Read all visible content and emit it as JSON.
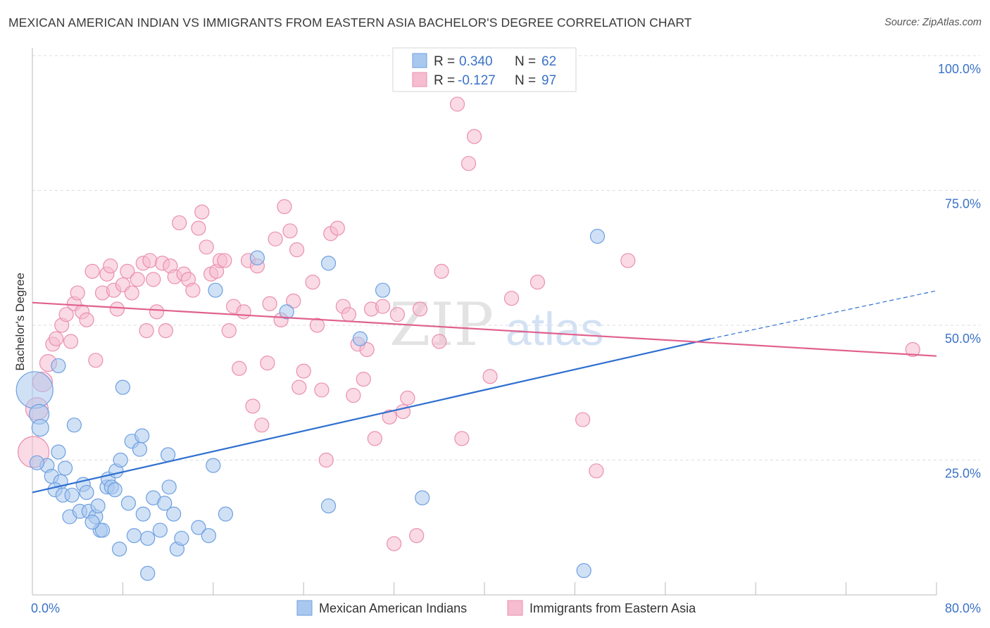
{
  "title": "MEXICAN AMERICAN INDIAN VS IMMIGRANTS FROM EASTERN ASIA BACHELOR'S DEGREE CORRELATION CHART",
  "source": "Source: ZipAtlas.com",
  "watermark": {
    "zip": "ZIP",
    "atlas": "atlas"
  },
  "colors": {
    "blue_fill": "#a9c8ef",
    "blue_stroke": "#6d9fe0",
    "blue_line": "#2e6fd0",
    "pink_fill": "#f6bcd0",
    "pink_stroke": "#ea8faf",
    "pink_line": "#e0608e",
    "tick_text": "#3b72c7",
    "grid": "#dddddd"
  },
  "legend": {
    "rows": [
      {
        "r_label": "R = ",
        "r_value": "0.340",
        "n_label": "N = ",
        "n_value": "62"
      },
      {
        "r_label": "R = ",
        "r_value": "-0.127",
        "n_label": "N = ",
        "n_value": "97"
      }
    ]
  },
  "chart_data": {
    "type": "scatter",
    "title": "MEXICAN AMERICAN INDIAN VS IMMIGRANTS FROM EASTERN ASIA BACHELOR'S DEGREE CORRELATION CHART",
    "xlabel": "",
    "ylabel": "Bachelor's Degree",
    "xlim": [
      0,
      80
    ],
    "ylim": [
      0,
      100
    ],
    "x_ticks": [
      "0.0%",
      "80.0%"
    ],
    "y_ticks": [
      {
        "value": 100,
        "label": "100.0%"
      },
      {
        "value": 75,
        "label": "75.0%"
      },
      {
        "value": 50,
        "label": "50.0%"
      },
      {
        "value": 25,
        "label": "25.0%"
      }
    ],
    "grid": true,
    "legend_position": "bottom",
    "series": [
      {
        "name": "Mexican American Indians",
        "color": "#a9c8ef",
        "trend": {
          "x0": 0,
          "y0": 19,
          "x1": 60,
          "y1": 47.5,
          "dashed_to_x": 80,
          "dashed_to_y": 56.4
        },
        "points": [
          [
            0.2,
            38,
            26
          ],
          [
            0.6,
            33.5,
            14
          ],
          [
            0.7,
            31,
            12
          ],
          [
            2.3,
            42.5,
            10
          ],
          [
            3.7,
            31.5,
            10
          ],
          [
            8,
            38.5,
            10
          ],
          [
            1.3,
            24,
            10
          ],
          [
            2.3,
            26.5,
            10
          ],
          [
            2.9,
            23.5,
            10
          ],
          [
            1.7,
            22,
            10
          ],
          [
            2.5,
            21,
            10
          ],
          [
            2.0,
            19.5,
            10
          ],
          [
            2.7,
            18.5,
            10
          ],
          [
            3.5,
            18.5,
            10
          ],
          [
            4.5,
            20.5,
            10
          ],
          [
            4.8,
            19,
            10
          ],
          [
            3.3,
            14.5,
            10
          ],
          [
            4.2,
            15.5,
            10
          ],
          [
            5.0,
            15.5,
            10
          ],
          [
            5.6,
            14.5,
            10
          ],
          [
            5.8,
            16.5,
            10
          ],
          [
            6.0,
            12,
            10
          ],
          [
            6.2,
            12,
            10
          ],
          [
            6.6,
            20,
            10
          ],
          [
            6.7,
            21.5,
            10
          ],
          [
            7.0,
            20,
            10
          ],
          [
            7.3,
            19.5,
            10
          ],
          [
            7.4,
            23,
            10
          ],
          [
            7.8,
            25,
            10
          ],
          [
            8.5,
            17,
            10
          ],
          [
            7.7,
            8.5,
            10
          ],
          [
            8.8,
            28.5,
            10
          ],
          [
            9.0,
            11,
            10
          ],
          [
            9.5,
            27,
            10
          ],
          [
            9.8,
            15,
            10
          ],
          [
            9.7,
            29.5,
            10
          ],
          [
            10.2,
            10.5,
            10
          ],
          [
            10.2,
            4,
            10
          ],
          [
            10.7,
            18,
            10
          ],
          [
            11.3,
            12,
            10
          ],
          [
            11.7,
            17,
            10
          ],
          [
            12.0,
            26,
            10
          ],
          [
            12.1,
            20,
            10
          ],
          [
            12.5,
            15,
            10
          ],
          [
            12.8,
            8.5,
            10
          ],
          [
            13.2,
            10.5,
            10
          ],
          [
            14.7,
            12.5,
            10
          ],
          [
            15.6,
            11,
            10
          ],
          [
            16.0,
            24,
            10
          ],
          [
            16.2,
            56.5,
            10
          ],
          [
            17.1,
            15,
            10
          ],
          [
            19.9,
            62.5,
            10
          ],
          [
            22.5,
            52.5,
            10
          ],
          [
            26.2,
            16.5,
            10
          ],
          [
            26.2,
            61.5,
            10
          ],
          [
            29.0,
            47.5,
            10
          ],
          [
            31.0,
            56.5,
            10
          ],
          [
            34.5,
            18,
            10
          ],
          [
            50.0,
            66.5,
            10
          ],
          [
            48.8,
            4.5,
            10
          ],
          [
            0.4,
            24.5,
            10
          ],
          [
            5.3,
            13.5,
            10
          ]
        ]
      },
      {
        "name": "Immigrants from Eastern Asia",
        "color": "#f6bcd0",
        "trend": {
          "x0": 0,
          "y0": 54.2,
          "x1": 80,
          "y1": 44.3
        },
        "points": [
          [
            0.1,
            26.5,
            22
          ],
          [
            0.4,
            34.5,
            16
          ],
          [
            0.9,
            39.5,
            14
          ],
          [
            1.4,
            43,
            12
          ],
          [
            1.8,
            46.5,
            10
          ],
          [
            2.1,
            47.5,
            10
          ],
          [
            2.6,
            50,
            10
          ],
          [
            3.0,
            52,
            10
          ],
          [
            3.4,
            47,
            10
          ],
          [
            3.7,
            54,
            10
          ],
          [
            4.0,
            56,
            10
          ],
          [
            4.4,
            52.5,
            10
          ],
          [
            4.8,
            51,
            10
          ],
          [
            5.3,
            60,
            10
          ],
          [
            5.6,
            43.5,
            10
          ],
          [
            6.2,
            56,
            10
          ],
          [
            6.6,
            59.5,
            10
          ],
          [
            6.9,
            61,
            10
          ],
          [
            7.2,
            56.5,
            10
          ],
          [
            7.5,
            53,
            10
          ],
          [
            8.0,
            57.5,
            10
          ],
          [
            8.4,
            60,
            10
          ],
          [
            8.8,
            56,
            10
          ],
          [
            9.3,
            58.5,
            10
          ],
          [
            9.8,
            61.5,
            10
          ],
          [
            10.1,
            49,
            10
          ],
          [
            10.4,
            62,
            10
          ],
          [
            10.7,
            58.5,
            10
          ],
          [
            11.0,
            52.5,
            10
          ],
          [
            11.5,
            61.5,
            10
          ],
          [
            11.8,
            49,
            10
          ],
          [
            12.2,
            61,
            10
          ],
          [
            12.6,
            59,
            10
          ],
          [
            13.0,
            69,
            10
          ],
          [
            13.4,
            59.5,
            10
          ],
          [
            13.8,
            58.5,
            10
          ],
          [
            14.2,
            56.5,
            10
          ],
          [
            14.7,
            68,
            10
          ],
          [
            15.0,
            71,
            10
          ],
          [
            15.4,
            64.5,
            10
          ],
          [
            15.8,
            59.5,
            10
          ],
          [
            16.3,
            60,
            10
          ],
          [
            16.6,
            62,
            10
          ],
          [
            17.0,
            62,
            10
          ],
          [
            17.4,
            49,
            10
          ],
          [
            17.8,
            53.5,
            10
          ],
          [
            18.3,
            42,
            10
          ],
          [
            18.7,
            52.5,
            10
          ],
          [
            19.1,
            62,
            10
          ],
          [
            19.5,
            35,
            10
          ],
          [
            19.9,
            61,
            10
          ],
          [
            20.3,
            31.5,
            10
          ],
          [
            20.8,
            43,
            10
          ],
          [
            21.0,
            54,
            10
          ],
          [
            21.5,
            66,
            10
          ],
          [
            22.0,
            51,
            10
          ],
          [
            22.3,
            72,
            10
          ],
          [
            22.8,
            67.5,
            10
          ],
          [
            23.1,
            54.5,
            10
          ],
          [
            23.4,
            64,
            10
          ],
          [
            23.6,
            38.5,
            10
          ],
          [
            24.0,
            41.5,
            10
          ],
          [
            24.8,
            58,
            10
          ],
          [
            25.2,
            50,
            10
          ],
          [
            25.6,
            38,
            10
          ],
          [
            26.0,
            25,
            10
          ],
          [
            26.4,
            67,
            10
          ],
          [
            27.0,
            68,
            10
          ],
          [
            27.5,
            53.5,
            10
          ],
          [
            28.0,
            52,
            10
          ],
          [
            28.4,
            37,
            10
          ],
          [
            28.8,
            46.5,
            10
          ],
          [
            29.3,
            40,
            10
          ],
          [
            29.6,
            45.5,
            10
          ],
          [
            30.0,
            53,
            10
          ],
          [
            30.3,
            29,
            10
          ],
          [
            31.0,
            53.5,
            10
          ],
          [
            31.6,
            33,
            10
          ],
          [
            32.0,
            9.5,
            10
          ],
          [
            32.3,
            52,
            10
          ],
          [
            32.8,
            34,
            10
          ],
          [
            33.2,
            36.5,
            10
          ],
          [
            34.0,
            11,
            10
          ],
          [
            34.3,
            53,
            10
          ],
          [
            36.0,
            47,
            10
          ],
          [
            36.2,
            60,
            10
          ],
          [
            37.6,
            91,
            10
          ],
          [
            38.0,
            29,
            10
          ],
          [
            38.6,
            80,
            10
          ],
          [
            39.1,
            85,
            10
          ],
          [
            40.5,
            40.5,
            10
          ],
          [
            42.4,
            55,
            10
          ],
          [
            44.7,
            58,
            10
          ],
          [
            48.7,
            32.5,
            10
          ],
          [
            49.9,
            23,
            10
          ],
          [
            52.7,
            62,
            10
          ],
          [
            77.9,
            45.5,
            10
          ]
        ]
      }
    ]
  }
}
